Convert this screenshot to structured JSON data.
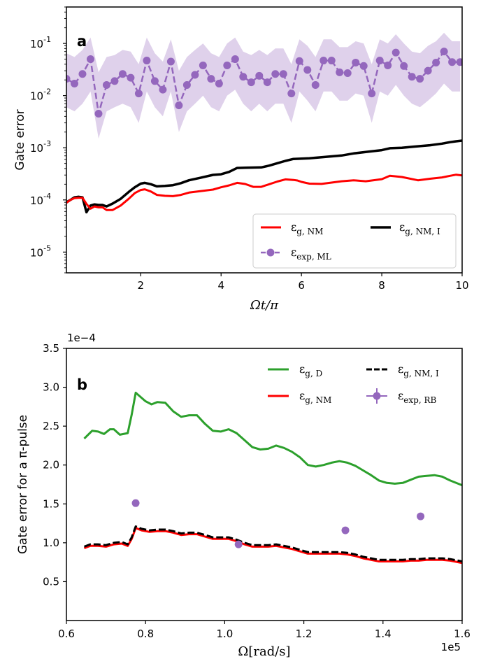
{
  "chart_data": [
    {
      "panel": "a",
      "type": "line",
      "xlabel": "Ωt/π",
      "ylabel": "Gate error",
      "yscale": "log",
      "xlim": [
        0.15,
        10
      ],
      "ylim": [
        4e-06,
        0.5
      ],
      "xticks": [
        2,
        4,
        6,
        8,
        10
      ],
      "yticks": [
        1e-05,
        0.0001,
        0.001,
        0.01,
        0.1
      ],
      "ytick_labels": [
        [
          "10",
          "-5"
        ],
        [
          "10",
          "-4"
        ],
        [
          "10",
          "-3"
        ],
        [
          "10",
          "-2"
        ],
        [
          "10",
          "-1"
        ]
      ],
      "legend": [
        {
          "label": "ε_{g, NM}",
          "sym": "ε",
          "sub": "g, NM",
          "color": "#ff0000",
          "style": "solid"
        },
        {
          "label": "ε_{g, NM, I}",
          "sym": "ε",
          "sub": "g, NM, I",
          "color": "#000000",
          "style": "solid"
        },
        {
          "label": "ε_{exp, ML}",
          "sym": "ε",
          "sub": "exp, ML",
          "color": "#9467bd",
          "style": "dashed-marker"
        }
      ],
      "series": [
        {
          "name": "ε_{exp, ML}",
          "color": "#9467bd",
          "x": [
            0.15,
            0.35,
            0.55,
            0.75,
            0.95,
            1.15,
            1.35,
            1.55,
            1.75,
            1.95,
            2.15,
            2.35,
            2.55,
            2.75,
            2.95,
            3.15,
            3.35,
            3.55,
            3.75,
            3.95,
            4.15,
            4.35,
            4.55,
            4.75,
            4.95,
            5.15,
            5.35,
            5.55,
            5.75,
            5.95,
            6.15,
            6.35,
            6.55,
            6.75,
            6.95,
            7.15,
            7.35,
            7.55,
            7.75,
            7.95,
            8.15,
            8.35,
            8.55,
            8.75,
            8.95,
            9.15,
            9.35,
            9.55,
            9.75,
            9.95
          ],
          "y": [
            0.021,
            0.017,
            0.026,
            0.05,
            0.0045,
            0.016,
            0.019,
            0.026,
            0.022,
            0.011,
            0.047,
            0.019,
            0.013,
            0.045,
            0.0065,
            0.016,
            0.025,
            0.038,
            0.021,
            0.017,
            0.038,
            0.05,
            0.023,
            0.018,
            0.024,
            0.018,
            0.026,
            0.026,
            0.011,
            0.046,
            0.031,
            0.016,
            0.047,
            0.047,
            0.028,
            0.027,
            0.043,
            0.037,
            0.011,
            0.047,
            0.038,
            0.067,
            0.037,
            0.023,
            0.021,
            0.03,
            0.043,
            0.07,
            0.044,
            0.044
          ],
          "band_lower": [
            0.006,
            0.005,
            0.007,
            0.012,
            0.0015,
            0.005,
            0.006,
            0.007,
            0.006,
            0.003,
            0.012,
            0.006,
            0.004,
            0.012,
            0.002,
            0.005,
            0.007,
            0.01,
            0.006,
            0.005,
            0.01,
            0.013,
            0.007,
            0.005,
            0.007,
            0.005,
            0.007,
            0.007,
            0.003,
            0.012,
            0.008,
            0.005,
            0.012,
            0.012,
            0.008,
            0.008,
            0.011,
            0.01,
            0.003,
            0.012,
            0.01,
            0.016,
            0.01,
            0.007,
            0.006,
            0.008,
            0.011,
            0.017,
            0.012,
            0.012
          ],
          "band_upper": [
            0.065,
            0.055,
            0.075,
            0.13,
            0.028,
            0.055,
            0.06,
            0.075,
            0.07,
            0.04,
            0.13,
            0.065,
            0.045,
            0.12,
            0.03,
            0.055,
            0.075,
            0.1,
            0.065,
            0.055,
            0.1,
            0.13,
            0.07,
            0.06,
            0.075,
            0.06,
            0.08,
            0.08,
            0.04,
            0.12,
            0.09,
            0.055,
            0.12,
            0.12,
            0.085,
            0.085,
            0.11,
            0.1,
            0.04,
            0.12,
            0.1,
            0.15,
            0.1,
            0.07,
            0.065,
            0.09,
            0.11,
            0.16,
            0.11,
            0.11
          ]
        },
        {
          "name": "ε_{g, NM}",
          "color": "#ff0000",
          "x": [
            0.15,
            0.25,
            0.35,
            0.45,
            0.55,
            0.65,
            0.75,
            0.85,
            0.95,
            1.05,
            1.15,
            1.3,
            1.5,
            1.7,
            1.85,
            2.0,
            2.1,
            2.25,
            2.4,
            2.6,
            2.8,
            3.0,
            3.2,
            3.5,
            3.8,
            4.0,
            4.2,
            4.4,
            4.6,
            4.8,
            5.0,
            5.2,
            5.4,
            5.6,
            5.8,
            5.9,
            6.0,
            6.2,
            6.5,
            7.0,
            7.3,
            7.6,
            8.0,
            8.2,
            8.5,
            8.9,
            9.2,
            9.5,
            9.7,
            9.85,
            10.0
          ],
          "y": [
            8.8e-05,
            0.0001,
            0.000108,
            0.00011,
            0.00011,
            8.35e-05,
            6.8e-05,
            7.5e-05,
            7.2e-05,
            7.2e-05,
            6.4e-05,
            6.4e-05,
            7.8e-05,
            0.000105,
            0.000135,
            0.000155,
            0.00016,
            0.000145,
            0.000125,
            0.00012,
            0.000118,
            0.000125,
            0.000138,
            0.000148,
            0.000158,
            0.000175,
            0.00019,
            0.000212,
            0.000202,
            0.000178,
            0.000178,
            0.0002,
            0.000225,
            0.000248,
            0.000242,
            0.000236,
            0.000222,
            0.000205,
            0.000203,
            0.000228,
            0.000238,
            0.000228,
            0.00025,
            0.00029,
            0.000275,
            0.000238,
            0.000255,
            0.00027,
            0.00029,
            0.000305,
            0.000295
          ]
        },
        {
          "name": "ε_{g, NM, I}",
          "color": "#000000",
          "x": [
            0.15,
            0.25,
            0.35,
            0.45,
            0.55,
            0.65,
            0.75,
            0.85,
            0.95,
            1.05,
            1.15,
            1.3,
            1.5,
            1.7,
            1.85,
            2.0,
            2.1,
            2.25,
            2.4,
            2.6,
            2.8,
            3.0,
            3.2,
            3.5,
            3.8,
            4.0,
            4.2,
            4.4,
            4.6,
            4.8,
            5.0,
            5.2,
            5.4,
            5.6,
            5.8,
            6.0,
            6.2,
            6.5,
            7.0,
            7.3,
            7.6,
            8.0,
            8.2,
            8.5,
            8.8,
            9.2,
            9.5,
            9.7,
            9.85,
            10.0
          ],
          "y": [
            9e-05,
            0.0001,
            0.000112,
            0.000115,
            0.000112,
            5.8e-05,
            7.8e-05,
            8.2e-05,
            8e-05,
            8e-05,
            7.5e-05,
            8.5e-05,
            0.000105,
            0.000142,
            0.000175,
            0.000205,
            0.000212,
            0.0002,
            0.000182,
            0.000186,
            0.000192,
            0.00021,
            0.000238,
            0.000268,
            0.000302,
            0.00031,
            0.000345,
            0.00041,
            0.000415,
            0.000418,
            0.00042,
            0.000455,
            0.000505,
            0.00056,
            0.00061,
            0.00062,
            0.00063,
            0.00066,
            0.00071,
            0.00078,
            0.00083,
            0.0009,
            0.00098,
            0.001,
            0.00105,
            0.00112,
            0.0012,
            0.00128,
            0.00133,
            0.00137
          ]
        }
      ]
    },
    {
      "panel": "b",
      "type": "line",
      "xlabel": "Ω[rad/s]",
      "ylabel": "Gate error for a π-pulse",
      "x_offset_label": "1e5",
      "y_offset_label": "1e−4",
      "xlim": [
        0.6,
        1.6
      ],
      "ylim": [
        0.0,
        3.5
      ],
      "xticks": [
        0.6,
        0.8,
        1.0,
        1.2,
        1.4,
        1.6
      ],
      "xtick_labels": [
        "0.6",
        "0.8",
        "1.0",
        "1.2",
        "1.4",
        "1.6"
      ],
      "yticks": [
        0.5,
        1.0,
        1.5,
        2.0,
        2.5,
        3.0,
        3.5
      ],
      "ytick_labels": [
        "0.5",
        "1.0",
        "1.5",
        "2.0",
        "2.5",
        "3.0",
        "3.5"
      ],
      "legend": [
        {
          "label": "ε_{g, D}",
          "sym": "ε",
          "sub": "g, D",
          "color": "#2ca02c",
          "style": "solid"
        },
        {
          "label": "ε_{g, NM, I}",
          "sym": "ε",
          "sub": "g, NM, I",
          "color": "#000000",
          "style": "dashed"
        },
        {
          "label": "ε_{g, NM}",
          "sym": "ε",
          "sub": "g, NM",
          "color": "#ff0000",
          "style": "solid"
        },
        {
          "label": "ε_{exp, RB}",
          "sym": "ε",
          "sub": "exp, RB",
          "color": "#9467bd",
          "style": "errorbar"
        }
      ],
      "series": [
        {
          "name": "ε_{g, D}",
          "color": "#2ca02c",
          "x": [
            0.645,
            0.665,
            0.68,
            0.695,
            0.71,
            0.72,
            0.735,
            0.755,
            0.765,
            0.775,
            0.8,
            0.815,
            0.83,
            0.85,
            0.87,
            0.89,
            0.91,
            0.93,
            0.95,
            0.97,
            0.99,
            1.01,
            1.03,
            1.05,
            1.07,
            1.09,
            1.11,
            1.13,
            1.15,
            1.17,
            1.19,
            1.21,
            1.23,
            1.25,
            1.27,
            1.29,
            1.31,
            1.33,
            1.35,
            1.37,
            1.39,
            1.41,
            1.43,
            1.45,
            1.47,
            1.49,
            1.51,
            1.53,
            1.55,
            1.57,
            1.59,
            1.6
          ],
          "y": [
            2.34,
            2.44,
            2.43,
            2.4,
            2.46,
            2.46,
            2.39,
            2.41,
            2.65,
            2.93,
            2.82,
            2.78,
            2.81,
            2.8,
            2.69,
            2.62,
            2.64,
            2.64,
            2.53,
            2.44,
            2.43,
            2.46,
            2.41,
            2.32,
            2.23,
            2.2,
            2.21,
            2.25,
            2.22,
            2.17,
            2.1,
            2.0,
            1.98,
            2.0,
            2.03,
            2.05,
            2.03,
            1.99,
            1.93,
            1.87,
            1.8,
            1.77,
            1.76,
            1.77,
            1.81,
            1.85,
            1.86,
            1.87,
            1.85,
            1.8,
            1.76,
            1.74
          ]
        },
        {
          "name": "ε_{g, NM}",
          "color": "#ff0000",
          "x": [
            0.645,
            0.66,
            0.68,
            0.7,
            0.72,
            0.74,
            0.755,
            0.765,
            0.775,
            0.79,
            0.81,
            0.83,
            0.85,
            0.87,
            0.89,
            0.91,
            0.93,
            0.95,
            0.97,
            0.99,
            1.01,
            1.03,
            1.05,
            1.07,
            1.09,
            1.11,
            1.13,
            1.15,
            1.17,
            1.19,
            1.21,
            1.23,
            1.25,
            1.27,
            1.29,
            1.31,
            1.33,
            1.35,
            1.37,
            1.39,
            1.41,
            1.43,
            1.45,
            1.47,
            1.49,
            1.51,
            1.53,
            1.55,
            1.57,
            1.59,
            1.6
          ],
          "y": [
            0.93,
            0.96,
            0.96,
            0.95,
            0.98,
            0.99,
            0.96,
            1.05,
            1.19,
            1.16,
            1.14,
            1.15,
            1.15,
            1.13,
            1.1,
            1.11,
            1.11,
            1.08,
            1.05,
            1.05,
            1.05,
            1.02,
            0.98,
            0.95,
            0.95,
            0.95,
            0.96,
            0.94,
            0.92,
            0.89,
            0.86,
            0.86,
            0.86,
            0.86,
            0.86,
            0.85,
            0.83,
            0.8,
            0.78,
            0.76,
            0.76,
            0.76,
            0.76,
            0.77,
            0.77,
            0.78,
            0.78,
            0.78,
            0.77,
            0.75,
            0.74
          ]
        },
        {
          "name": "ε_{g, NM, I}",
          "color": "#000000",
          "x": [
            0.645,
            0.66,
            0.68,
            0.7,
            0.72,
            0.74,
            0.755,
            0.765,
            0.775,
            0.79,
            0.81,
            0.83,
            0.85,
            0.87,
            0.89,
            0.91,
            0.93,
            0.95,
            0.97,
            0.99,
            1.01,
            1.03,
            1.05,
            1.07,
            1.09,
            1.11,
            1.13,
            1.15,
            1.17,
            1.19,
            1.21,
            1.23,
            1.25,
            1.27,
            1.29,
            1.31,
            1.33,
            1.35,
            1.37,
            1.39,
            1.41,
            1.43,
            1.45,
            1.47,
            1.49,
            1.51,
            1.53,
            1.55,
            1.57,
            1.59,
            1.6
          ],
          "y": [
            0.95,
            0.98,
            0.98,
            0.97,
            1.0,
            1.01,
            0.98,
            1.07,
            1.21,
            1.18,
            1.16,
            1.17,
            1.17,
            1.15,
            1.12,
            1.13,
            1.13,
            1.1,
            1.07,
            1.07,
            1.07,
            1.04,
            1.0,
            0.97,
            0.97,
            0.97,
            0.98,
            0.96,
            0.94,
            0.91,
            0.88,
            0.88,
            0.88,
            0.88,
            0.88,
            0.87,
            0.85,
            0.82,
            0.8,
            0.78,
            0.78,
            0.78,
            0.78,
            0.79,
            0.79,
            0.8,
            0.8,
            0.8,
            0.79,
            0.77,
            0.76
          ]
        },
        {
          "name": "ε_{exp, RB}",
          "color": "#9467bd",
          "x": [
            0.775,
            1.035,
            1.305,
            1.495
          ],
          "y": [
            1.51,
            0.98,
            1.16,
            1.34
          ]
        }
      ]
    }
  ]
}
